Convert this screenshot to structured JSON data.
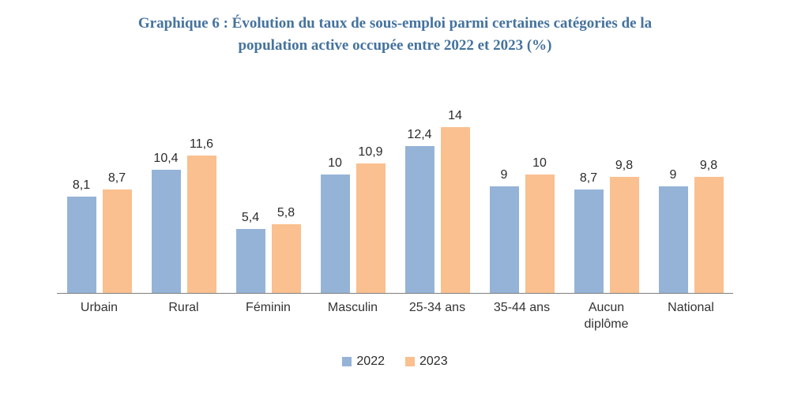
{
  "title": {
    "line1": "Graphique 6 : Évolution du taux de sous-emploi parmi certaines catégories de la",
    "line2": "population active occupée entre 2022 et 2023 (%)"
  },
  "colors": {
    "title_text": "#44729E",
    "series_2022": "#95B3D7",
    "series_2023": "#FAC08F",
    "axis_line": "#7f7f7f",
    "label_text": "#2b2b2b"
  },
  "chart_data": {
    "type": "bar",
    "title": "Graphique 6 : Évolution du taux de sous-emploi parmi certaines catégories de la population active occupée entre 2022 et 2023 (%)",
    "categories": [
      "Urbain",
      "Rural",
      "Féminin",
      "Masculin",
      "25-34 ans",
      "35-44 ans",
      "Aucun diplôme",
      "National"
    ],
    "series": [
      {
        "name": "2022",
        "color": "#95B3D7",
        "values": [
          8.1,
          10.4,
          5.4,
          10,
          12.4,
          9,
          8.7,
          9
        ],
        "labels": [
          "8,1",
          "10,4",
          "5,4",
          "10",
          "12,4",
          "9",
          "8,7",
          "9"
        ]
      },
      {
        "name": "2023",
        "color": "#FAC08F",
        "values": [
          8.7,
          11.6,
          5.8,
          10.9,
          14,
          10,
          9.8,
          9.8
        ],
        "labels": [
          "8,7",
          "11,6",
          "5,8",
          "10,9",
          "14",
          "10",
          "9,8",
          "9,8"
        ]
      }
    ],
    "xlabel": "",
    "ylabel": "",
    "ylim": [
      0,
      14
    ],
    "grid": false,
    "y_axis_visible": false,
    "value_labels": true,
    "decimal_separator": ",",
    "legend_position": "bottom"
  },
  "legend": {
    "items": [
      {
        "label": "2022",
        "color": "#95B3D7"
      },
      {
        "label": "2023",
        "color": "#FAC08F"
      }
    ]
  }
}
